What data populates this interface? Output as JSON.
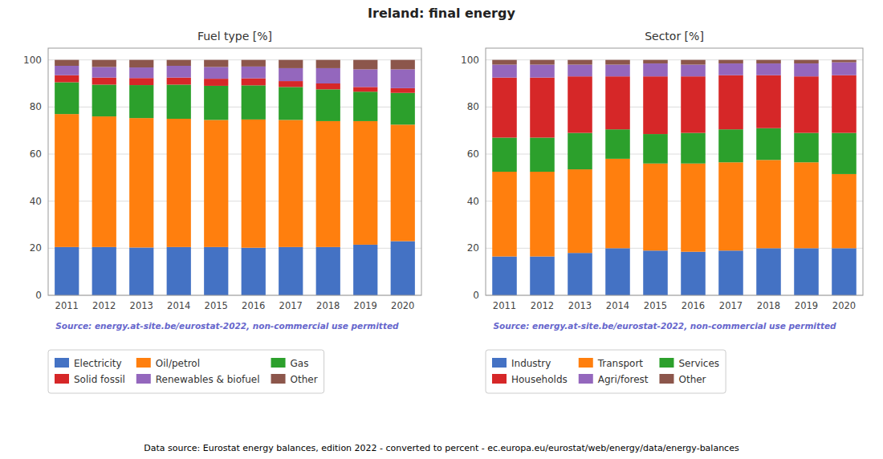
{
  "title": "Ireland: final energy",
  "footer": "Data source: Eurostat energy balances, edition 2022 - converted to percent - ec.europa.eu/eurostat/web/energy/data/energy-balances",
  "chart_data": [
    {
      "type": "bar",
      "stacked": true,
      "title": "Fuel type [%]",
      "categories": [
        "2011",
        "2012",
        "2013",
        "2014",
        "2015",
        "2016",
        "2017",
        "2018",
        "2019",
        "2020"
      ],
      "series": [
        {
          "name": "Electricity",
          "color": "#4472c4",
          "values": [
            20.5,
            20.5,
            20.3,
            20.5,
            20.5,
            20.2,
            20.5,
            20.5,
            21.5,
            23.0
          ]
        },
        {
          "name": "Oil/petrol",
          "color": "#ff7f0e",
          "values": [
            56.5,
            55.5,
            55.0,
            54.5,
            54.0,
            54.5,
            54.0,
            53.5,
            52.5,
            49.5
          ]
        },
        {
          "name": "Gas",
          "color": "#2ca02c",
          "values": [
            13.5,
            13.5,
            14.0,
            14.5,
            14.5,
            14.5,
            14.0,
            13.5,
            12.5,
            13.5
          ]
        },
        {
          "name": "Solid fossil",
          "color": "#d62728",
          "values": [
            3.0,
            3.0,
            3.0,
            3.0,
            3.0,
            3.0,
            2.5,
            2.5,
            2.0,
            2.0
          ]
        },
        {
          "name": "Renewables & biofuel",
          "color": "#9467bd",
          "values": [
            4.0,
            4.5,
            4.5,
            5.0,
            5.0,
            5.0,
            5.5,
            6.5,
            7.5,
            8.0
          ]
        },
        {
          "name": "Other",
          "color": "#8c564b",
          "values": [
            2.5,
            3.0,
            3.2,
            2.5,
            3.0,
            2.8,
            3.5,
            3.5,
            4.0,
            4.0
          ]
        }
      ],
      "ylim": [
        0,
        105
      ],
      "yticks": [
        0,
        20,
        40,
        60,
        80,
        100
      ],
      "grid": true,
      "legend": "bottom",
      "annotations": [
        "Source: energy.at-site.be/eurostat-2022, non-commercial use permitted"
      ]
    },
    {
      "type": "bar",
      "stacked": true,
      "title": "Sector [%]",
      "categories": [
        "2011",
        "2012",
        "2013",
        "2014",
        "2015",
        "2016",
        "2017",
        "2018",
        "2019",
        "2020"
      ],
      "series": [
        {
          "name": "Industry",
          "color": "#4472c4",
          "values": [
            16.5,
            16.5,
            18.0,
            20.0,
            19.0,
            18.5,
            19.0,
            20.0,
            20.0,
            20.0
          ]
        },
        {
          "name": "Transport",
          "color": "#ff7f0e",
          "values": [
            36.0,
            36.0,
            35.5,
            38.0,
            37.0,
            37.5,
            37.5,
            37.5,
            36.5,
            31.5
          ]
        },
        {
          "name": "Services",
          "color": "#2ca02c",
          "values": [
            14.5,
            14.5,
            15.5,
            12.5,
            12.5,
            13.0,
            14.0,
            13.5,
            12.5,
            17.5
          ]
        },
        {
          "name": "Households",
          "color": "#d62728",
          "values": [
            25.5,
            25.5,
            24.0,
            22.5,
            24.5,
            24.0,
            23.0,
            22.5,
            24.0,
            24.5
          ]
        },
        {
          "name": "Agri/forest",
          "color": "#9467bd",
          "values": [
            5.5,
            5.5,
            5.0,
            5.0,
            5.5,
            5.0,
            5.0,
            5.0,
            5.5,
            5.5
          ]
        },
        {
          "name": "Other",
          "color": "#8c564b",
          "values": [
            2.0,
            2.0,
            2.0,
            2.0,
            1.5,
            2.0,
            1.5,
            1.5,
            1.5,
            1.0
          ]
        }
      ],
      "ylim": [
        0,
        105
      ],
      "yticks": [
        0,
        20,
        40,
        60,
        80,
        100
      ],
      "grid": true,
      "legend": "bottom",
      "annotations": [
        "Source: energy.at-site.be/eurostat-2022, non-commercial use permitted"
      ]
    }
  ]
}
